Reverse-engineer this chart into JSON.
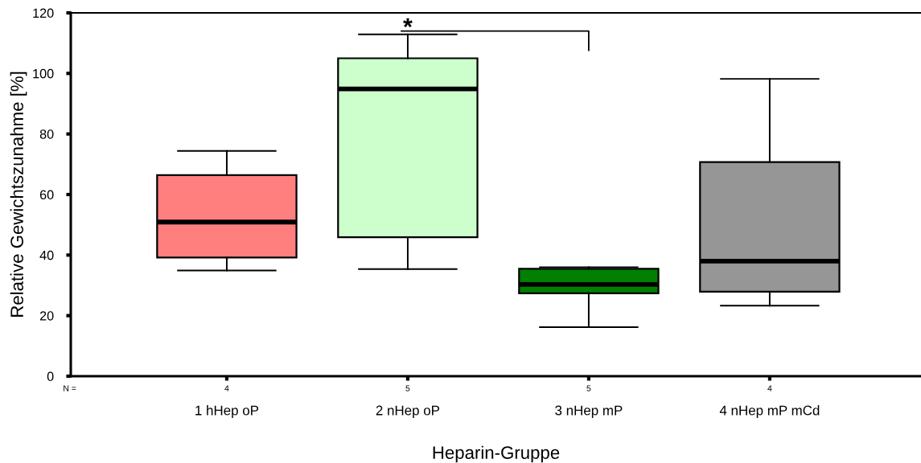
{
  "chart_data": {
    "type": "box",
    "xlabel": "Heparin-Gruppe",
    "ylabel": "Relative Gewichtszunahme [%]",
    "categories": [
      "1 hHep oP",
      "2 nHep oP",
      "3 nHep mP",
      "4 nHep mP mCd"
    ],
    "boxes": [
      {
        "low": 34.9,
        "q1": 39.2,
        "median": 50.9,
        "q3": 66.4,
        "high": 74.4
      },
      {
        "low": 35.4,
        "q1": 45.9,
        "median": 94.9,
        "q3": 105.0,
        "high": 112.9
      },
      {
        "low": 16.2,
        "q1": 27.4,
        "median": 30.3,
        "q3": 35.5,
        "high": 36.0
      },
      {
        "low": 23.3,
        "q1": 27.9,
        "median": 38.0,
        "q3": 70.7,
        "high": 98.2
      }
    ],
    "colors": [
      "#ff7f7f",
      "#ccffcc",
      "#007f00",
      "#969696"
    ],
    "ylim": [
      0,
      120
    ],
    "yticks": [
      0,
      20,
      40,
      60,
      80,
      100,
      120
    ],
    "annotations": [
      {
        "text": "*",
        "x": "2 nHep oP",
        "y": 114
      },
      "N =",
      "4",
      "5",
      "5",
      "4"
    ]
  }
}
